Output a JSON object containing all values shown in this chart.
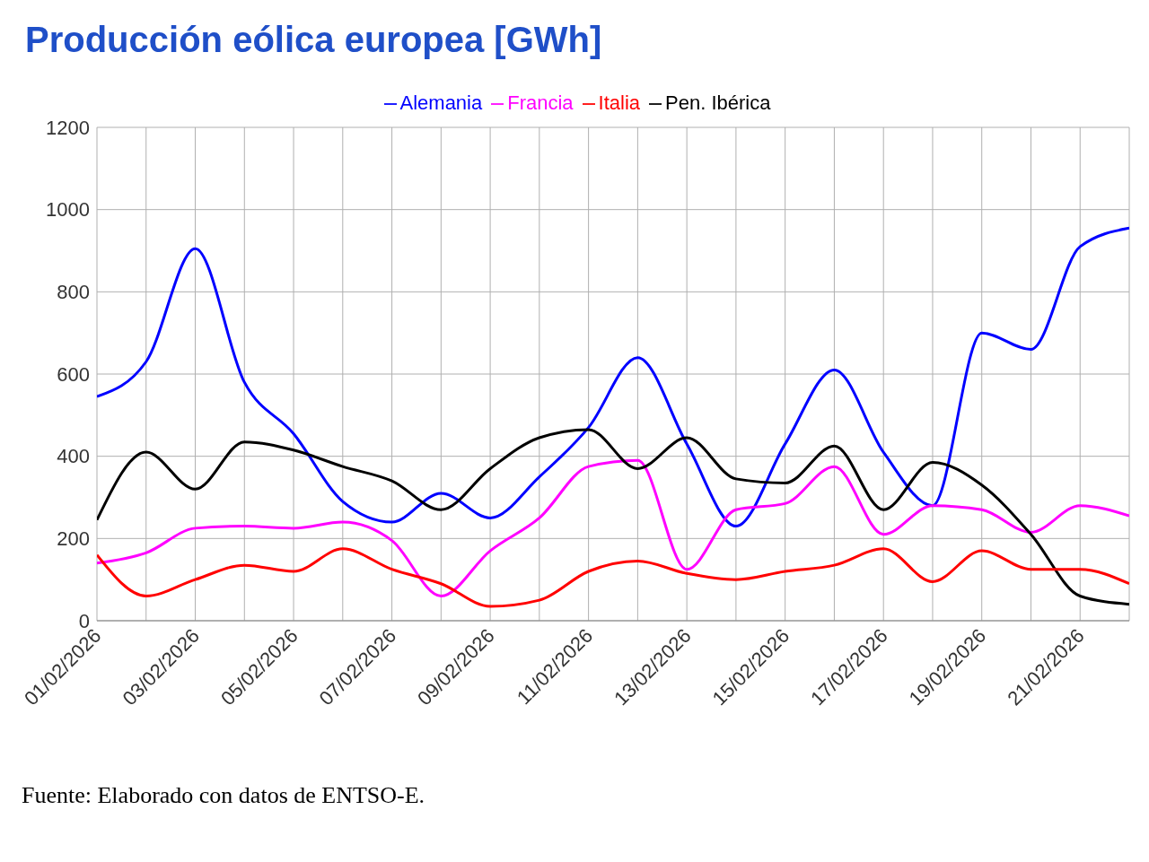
{
  "chart_data": {
    "type": "line",
    "title": "Producción eólica europea [GWh]",
    "categories": [
      "01/02/2026",
      null,
      "03/02/2026",
      null,
      "05/02/2026",
      null,
      "07/02/2026",
      null,
      "09/02/2026",
      null,
      "11/02/2026",
      null,
      "13/02/2026",
      null,
      "15/02/2026",
      null,
      "17/02/2026",
      null,
      "19/02/2026",
      null,
      "21/02/2026",
      null
    ],
    "series": [
      {
        "name": "Alemania",
        "color": "#0000ff",
        "values": [
          545,
          630,
          905,
          580,
          455,
          290,
          240,
          310,
          250,
          350,
          470,
          640,
          430,
          230,
          430,
          610,
          410,
          280,
          700,
          660,
          910,
          955
        ]
      },
      {
        "name": "Francia",
        "color": "#ff00ff",
        "values": [
          140,
          165,
          225,
          230,
          225,
          240,
          195,
          60,
          170,
          250,
          375,
          390,
          125,
          270,
          285,
          375,
          210,
          280,
          270,
          215,
          280,
          255
        ]
      },
      {
        "name": "Pen. Ibérica",
        "color": "#000000",
        "values": [
          245,
          410,
          320,
          435,
          415,
          375,
          340,
          270,
          370,
          445,
          465,
          370,
          445,
          345,
          335,
          425,
          270,
          385,
          330,
          210,
          60,
          40
        ]
      },
      {
        "name": "Italia",
        "color": "#ff0000",
        "values": [
          160,
          60,
          100,
          135,
          120,
          175,
          125,
          90,
          35,
          50,
          120,
          145,
          115,
          100,
          120,
          135,
          175,
          95,
          170,
          125,
          125,
          90
        ]
      }
    ],
    "ylim": [
      0,
      1200
    ],
    "yticks": [
      0,
      200,
      400,
      600,
      800,
      1000,
      1200
    ],
    "grid": true,
    "legend": "top",
    "marker": "none",
    "line_style": "solid",
    "annotations": [
      "Fuente: Elaborado con datos de ENTSO-E."
    ]
  }
}
